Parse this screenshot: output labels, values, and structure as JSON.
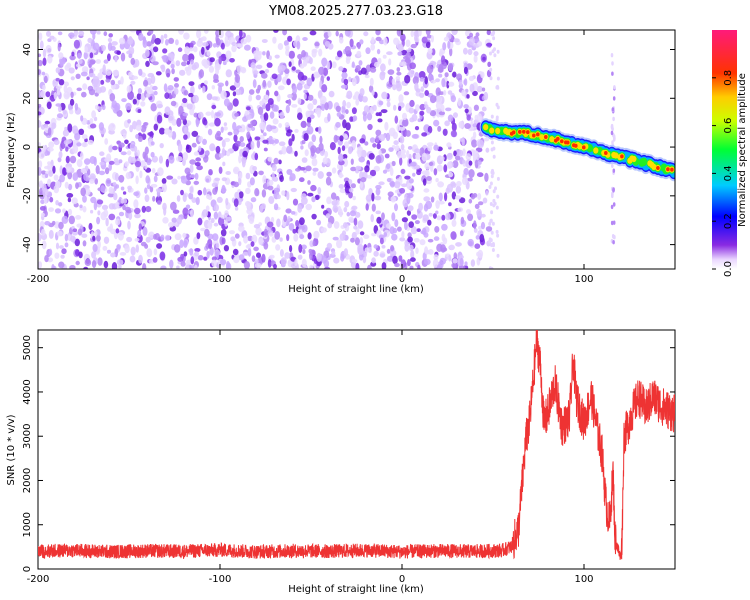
{
  "figure_title": "YM08.2025.277.03.23.G18",
  "chart_data": [
    {
      "type": "heatmap",
      "title": "",
      "xlabel": "Height of straight line (km)",
      "ylabel": "Frequency (Hz)",
      "xlim": [
        -200,
        150
      ],
      "ylim": [
        -50,
        48
      ],
      "xticks": [
        -200,
        -100,
        0,
        100
      ],
      "yticks": [
        -40,
        -20,
        0,
        20,
        40
      ],
      "colorbar": {
        "label": "Normalized spectral amplitude",
        "range": [
          0,
          1
        ],
        "ticks": [
          0.0,
          0.2,
          0.4,
          0.6,
          0.8
        ],
        "colormap": "rainbow (purple-blue-cyan-green-yellow-red-magenta)"
      },
      "noise_region": {
        "x_range": [
          -200,
          48
        ],
        "freq_range": [
          -50,
          48
        ],
        "amplitude": "0.0-0.1 (speckled purple noise)"
      },
      "signal_ridge": {
        "x": [
          46,
          50,
          60,
          70,
          80,
          90,
          100,
          110,
          120,
          130,
          140,
          150
        ],
        "frequency": [
          8,
          7,
          6,
          5.5,
          4,
          2,
          0,
          -2,
          -4,
          -6,
          -8,
          -10
        ],
        "peak_amplitude": 0.95
      },
      "weak_vertical_trace": {
        "x": 116,
        "freq_range": [
          -40,
          38
        ]
      }
    },
    {
      "type": "line",
      "title": "",
      "xlabel": "Height of straight line (km)",
      "ylabel": "SNR (10 * v/v)",
      "xlim": [
        -200,
        150
      ],
      "ylim": [
        0,
        5400
      ],
      "xticks": [
        -200,
        -100,
        0,
        100
      ],
      "yticks": [
        0,
        1000,
        2000,
        3000,
        4000,
        5000
      ],
      "color": "#ee3333",
      "series": [
        {
          "x": [
            -200,
            -180,
            -160,
            -140,
            -120,
            -100,
            -80,
            -60,
            -40,
            -20,
            0,
            20,
            40,
            55,
            60,
            64,
            66,
            68,
            70,
            72,
            74,
            76,
            78,
            80,
            84,
            88,
            92,
            94,
            96,
            100,
            104,
            108,
            110,
            112,
            114,
            116,
            117,
            119,
            120,
            121,
            122,
            124,
            126,
            130,
            134,
            138,
            142,
            146,
            150
          ],
          "values": [
            400,
            420,
            390,
            410,
            400,
            430,
            390,
            410,
            400,
            420,
            390,
            410,
            400,
            420,
            500,
            900,
            1900,
            2900,
            3300,
            4200,
            5200,
            4600,
            3300,
            3500,
            4200,
            3200,
            3400,
            4700,
            3800,
            3300,
            3900,
            3000,
            2600,
            1500,
            1000,
            2200,
            700,
            400,
            250,
            800,
            3000,
            3200,
            3500,
            3900,
            3600,
            3900,
            3700,
            3600,
            3500
          ]
        }
      ]
    }
  ]
}
